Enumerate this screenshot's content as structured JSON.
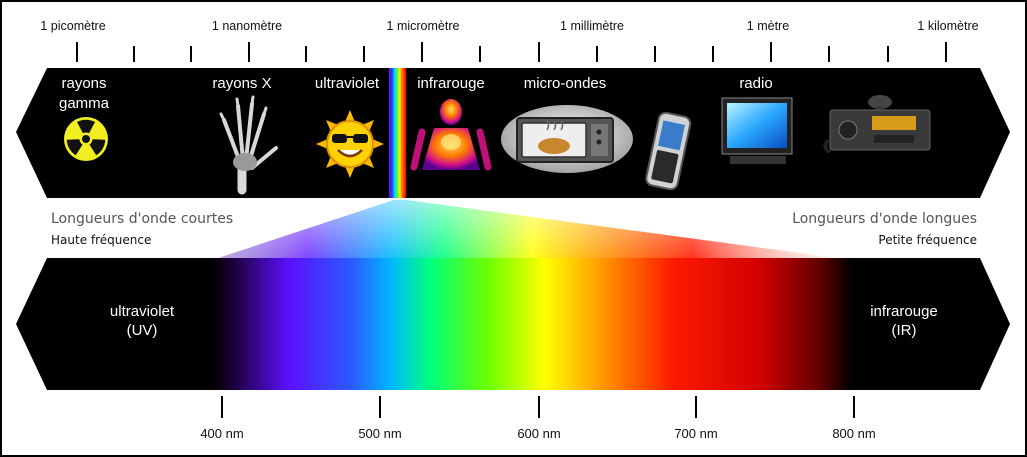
{
  "scale": {
    "labels": [
      "1 picomètre",
      "1 nanomètre",
      "1 micromètre",
      "1 millimètre",
      "1 mètre",
      "1 kilomètre"
    ]
  },
  "bands": {
    "gamma_line1": "rayons",
    "gamma_line2": "gamma",
    "xray": "rayons X",
    "uv": "ultraviolet",
    "ir": "infrarouge",
    "micro": "micro-ondes",
    "radio": "radio"
  },
  "sides": {
    "short_title": "Longueurs d'onde courtes",
    "short_sub": "Haute fréquence",
    "long_title": "Longueurs d'onde longues",
    "long_sub": "Petite fréquence"
  },
  "spectrum": {
    "uv_line1": "ultraviolet",
    "uv_line2": "(UV)",
    "ir_line1": "infrarouge",
    "ir_line2": "(IR)",
    "nm_labels": [
      "400 nm",
      "500 nm",
      "600 nm",
      "700 nm",
      "800 nm"
    ]
  },
  "icons": [
    "radiation-icon",
    "hand-xray-icon",
    "sun-icon",
    "thermal-body-icon",
    "microwave-oven-icon",
    "mobile-phone-icon",
    "television-icon",
    "radio-transceiver-icon"
  ]
}
